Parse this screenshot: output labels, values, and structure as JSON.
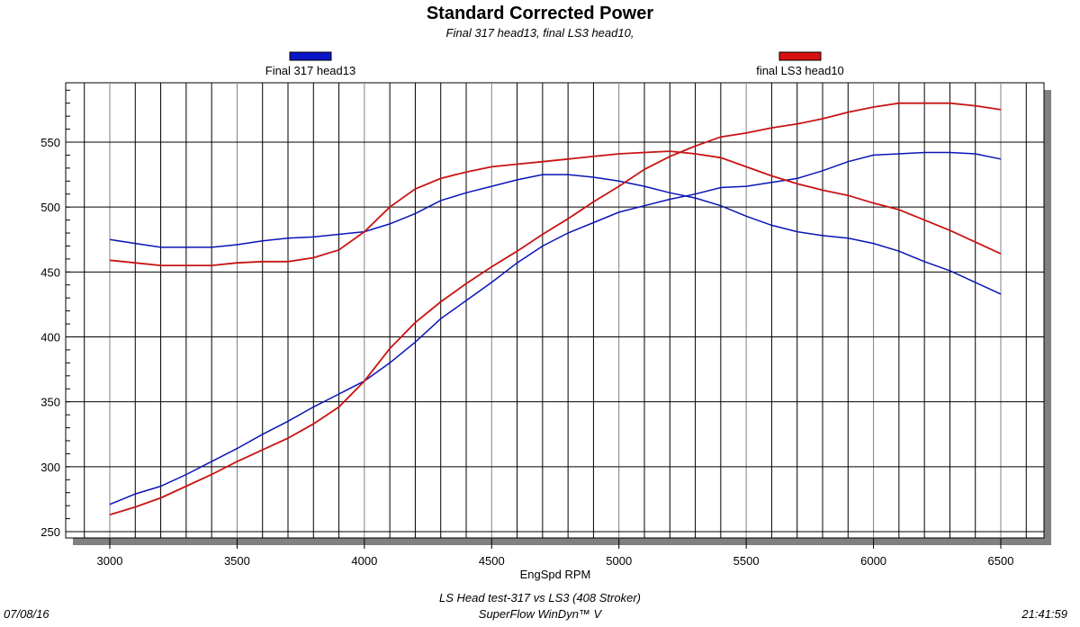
{
  "chart_data": {
    "type": "line",
    "title": "Standard Corrected Power",
    "subtitle": "Final 317 head13, final LS3 head10,",
    "xlabel": "EngSpd RPM",
    "ylabel": "",
    "xlim": [
      2820,
      6670
    ],
    "ylim": [
      245,
      596
    ],
    "xticks": [
      3000,
      3500,
      4000,
      4500,
      5000,
      5500,
      6000,
      6500
    ],
    "yticks": [
      250,
      300,
      350,
      400,
      450,
      500,
      550
    ],
    "grid": true,
    "legend_placement": "top",
    "x": [
      3000,
      3100,
      3200,
      3300,
      3400,
      3500,
      3600,
      3700,
      3800,
      3900,
      4000,
      4100,
      4200,
      4300,
      4400,
      4500,
      4600,
      4700,
      4800,
      4900,
      5000,
      5100,
      5200,
      5300,
      5400,
      5500,
      5600,
      5700,
      5800,
      5900,
      6000,
      6100,
      6200,
      6300,
      6400,
      6500
    ],
    "series": [
      {
        "name": "Final 317 head13",
        "color": "#0a14b4",
        "curves": [
          [
            271,
            279,
            285,
            294,
            304,
            314,
            325,
            335,
            346,
            356,
            366,
            380,
            396,
            414,
            428,
            442,
            457,
            470,
            480,
            488,
            496,
            501,
            506,
            510,
            515,
            516,
            519,
            522,
            528,
            535,
            540,
            541,
            542,
            542,
            541,
            537
          ],
          [
            475,
            472,
            469,
            469,
            469,
            471,
            474,
            476,
            477,
            479,
            481,
            487,
            495,
            505,
            511,
            516,
            521,
            525,
            525,
            523,
            520,
            516,
            511,
            507,
            501,
            493,
            486,
            481,
            478,
            476,
            472,
            466,
            458,
            451,
            442,
            433
          ]
        ]
      },
      {
        "name": "final LS3 head10",
        "color": "#c81414",
        "curves": [
          [
            263,
            269,
            276,
            285,
            294,
            304,
            313,
            322,
            333,
            346,
            366,
            391,
            411,
            427,
            441,
            454,
            466,
            479,
            491,
            504,
            516,
            529,
            539,
            547,
            554,
            557,
            561,
            564,
            568,
            573,
            577,
            580,
            580,
            580,
            578,
            575
          ],
          [
            459,
            457,
            455,
            455,
            455,
            457,
            458,
            458,
            461,
            467,
            481,
            500,
            514,
            522,
            527,
            531,
            533,
            535,
            537,
            539,
            541,
            542,
            543,
            541,
            538,
            531,
            524,
            518,
            513,
            509,
            503,
            498,
            490,
            482,
            473,
            464
          ]
        ]
      }
    ]
  },
  "footer": {
    "date": "07/08/16",
    "time": "21:41:59",
    "test_name": "LS Head test-317 vs LS3 (408 Stroker)",
    "software": "SuperFlow WinDyn™ V"
  }
}
